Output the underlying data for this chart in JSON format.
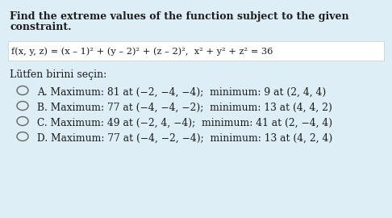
{
  "bg_color": "#ddeef6",
  "formula_box_color": "#ffffff",
  "title_line1": "Find the extreme values of the function subject to the given",
  "title_line2": "constraint.",
  "formula": "f(x, y, z) = (x – 1)² + (y – 2)² + (z – 2)²,  x² + y² + z² = 36",
  "prompt": "Lütfen birini seçin:",
  "options": [
    "A. Maximum: 81 at (−2, −4, −4);  minimum: 9 at (2, 4, 4)",
    "B. Maximum: 77 at (−4, −4, −2);  minimum: 13 at (4, 4, 2)",
    "C. Maximum: 49 at (−2, 4, −4);  minimum: 41 at (2, −4, 4)",
    "D. Maximum: 77 at (−4, −2, −4);  minimum: 13 at (4, 2, 4)"
  ],
  "title_fontsize": 9.0,
  "formula_fontsize": 8.2,
  "option_fontsize": 8.8,
  "prompt_fontsize": 9.0,
  "text_color": "#1c1c1c",
  "figsize": [
    4.86,
    2.7
  ],
  "dpi": 100
}
